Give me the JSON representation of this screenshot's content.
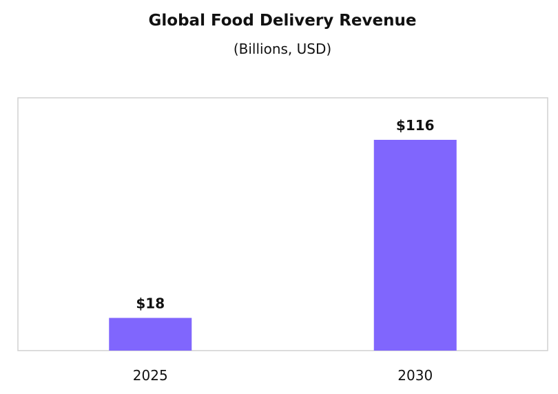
{
  "chart_data": {
    "type": "bar",
    "title": "Global Food Delivery Revenue",
    "subtitle": "(Billions, USD)",
    "categories": [
      "2025",
      "2030"
    ],
    "values": [
      18,
      116
    ],
    "value_labels": [
      "$18",
      "$116"
    ],
    "ylim": [
      0,
      136
    ],
    "grid": false,
    "legend": "none",
    "colors": {
      "bar": "#8066fd",
      "frame": "#d0d0d0",
      "text": "#111111"
    }
  }
}
